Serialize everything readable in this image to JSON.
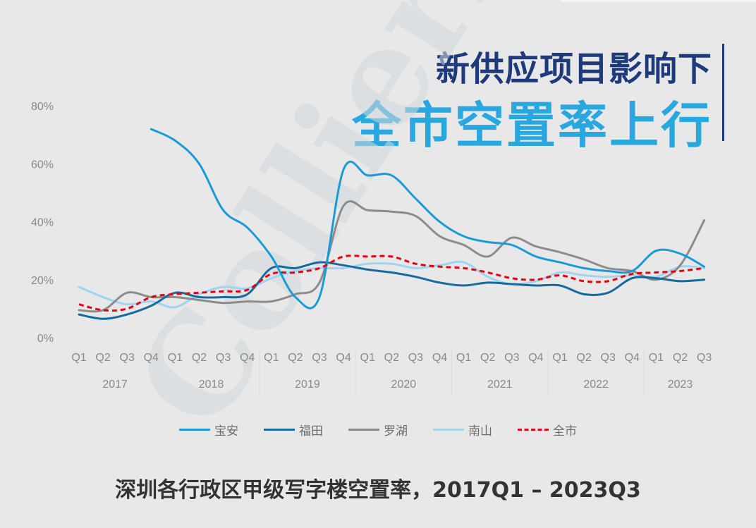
{
  "header": {
    "line1": "新供应项目影响下",
    "line2": "全市空置率上行"
  },
  "caption": "深圳各行政区甲级写字楼空置率，2017Q1 – 2023Q3",
  "watermark": "Colliers",
  "chart_data": {
    "type": "line",
    "title": "深圳各行政区甲级写字楼空置率，2017Q1 – 2023Q3",
    "ylim": [
      0,
      80
    ],
    "yticks": [
      "0%",
      "20%",
      "40%",
      "60%",
      "80%"
    ],
    "quarters": [
      "Q1",
      "Q2",
      "Q3",
      "Q4",
      "Q1",
      "Q2",
      "Q3",
      "Q4",
      "Q1",
      "Q2",
      "Q3",
      "Q4",
      "Q1",
      "Q2",
      "Q3",
      "Q4",
      "Q1",
      "Q2",
      "Q3",
      "Q4",
      "Q1",
      "Q2",
      "Q3",
      "Q4",
      "Q1",
      "Q2",
      "Q3"
    ],
    "years": [
      "2017",
      "2018",
      "2019",
      "2020",
      "2021",
      "2022",
      "2023"
    ],
    "x": [
      "2017Q1",
      "2017Q2",
      "2017Q3",
      "2017Q4",
      "2018Q1",
      "2018Q2",
      "2018Q3",
      "2018Q4",
      "2019Q1",
      "2019Q2",
      "2019Q3",
      "2019Q4",
      "2020Q1",
      "2020Q2",
      "2020Q3",
      "2020Q4",
      "2021Q1",
      "2021Q2",
      "2021Q3",
      "2021Q4",
      "2022Q1",
      "2022Q2",
      "2022Q3",
      "2022Q4",
      "2023Q1",
      "2023Q2",
      "2023Q3"
    ],
    "grid": false,
    "legend_position": "bottom",
    "series": [
      {
        "name": "宝安",
        "color": "#1a9bd7",
        "dashed": false,
        "values": [
          null,
          null,
          null,
          72,
          68,
          60,
          44,
          38,
          28,
          14,
          14,
          58,
          56,
          56,
          48,
          40,
          35,
          33,
          32,
          28,
          26,
          24,
          23,
          23,
          30,
          29,
          24.5
        ]
      },
      {
        "name": "福田",
        "color": "#176a9e",
        "dashed": false,
        "values": [
          8,
          6.5,
          8,
          11,
          15.5,
          14,
          14,
          15,
          24,
          24,
          26,
          25,
          23.5,
          22.5,
          21,
          19,
          18,
          19,
          18.5,
          18,
          18,
          15,
          15.5,
          20.5,
          20.5,
          19.5,
          20
        ]
      },
      {
        "name": "罗湖",
        "color": "#8c8c8c",
        "dashed": false,
        "values": [
          9.5,
          9.5,
          15.5,
          14,
          14,
          13,
          12,
          12.5,
          12.5,
          15,
          19,
          45.5,
          44,
          43.5,
          42,
          35,
          32,
          28,
          34.5,
          31.5,
          29.5,
          27,
          24,
          23,
          20,
          25,
          40.5
        ]
      },
      {
        "name": "南山",
        "color": "#9fd4f2",
        "dashed": false,
        "values": [
          17.5,
          14,
          11.5,
          12.5,
          10.5,
          15,
          17.5,
          17,
          20.5,
          23,
          24,
          24,
          25.5,
          25.5,
          24,
          25,
          26,
          21,
          18.5,
          19.5,
          22.5,
          21.5,
          21,
          21.5,
          21,
          24.5,
          24
        ]
      },
      {
        "name": "全市",
        "color": "#e60012",
        "dashed": true,
        "values": [
          11.5,
          9.5,
          10,
          14,
          15,
          15.5,
          16,
          16.5,
          22,
          22.5,
          24,
          28,
          28,
          28,
          25.5,
          24.5,
          24,
          22.5,
          20.5,
          20,
          21.5,
          19.5,
          19.5,
          22,
          22.5,
          23,
          24
        ]
      }
    ]
  }
}
